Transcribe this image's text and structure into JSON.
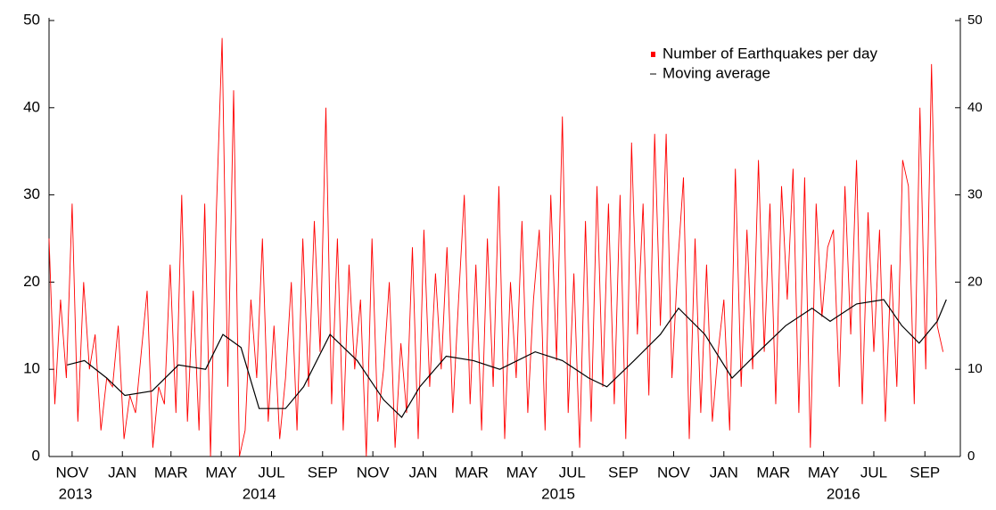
{
  "chart_data": {
    "type": "line",
    "xlim": [
      0,
      1106
    ],
    "ylim": [
      0,
      50
    ],
    "y2lim": [
      0,
      50
    ],
    "yticks": [
      0,
      10,
      20,
      30,
      40,
      50
    ],
    "y2ticks": [
      0,
      10,
      20,
      30,
      40,
      50
    ],
    "xticks": [
      {
        "value": 28,
        "label": "NOV"
      },
      {
        "value": 89,
        "label": "JAN"
      },
      {
        "value": 148,
        "label": "MAR"
      },
      {
        "value": 209,
        "label": "MAY"
      },
      {
        "value": 270,
        "label": "JUL"
      },
      {
        "value": 332,
        "label": "SEP"
      },
      {
        "value": 393,
        "label": "NOV"
      },
      {
        "value": 454,
        "label": "JAN"
      },
      {
        "value": 513,
        "label": "MAR"
      },
      {
        "value": 574,
        "label": "MAY"
      },
      {
        "value": 635,
        "label": "JUL"
      },
      {
        "value": 697,
        "label": "SEP"
      },
      {
        "value": 758,
        "label": "NOV"
      },
      {
        "value": 819,
        "label": "JAN"
      },
      {
        "value": 879,
        "label": "MAR"
      },
      {
        "value": 940,
        "label": "MAY"
      },
      {
        "value": 1001,
        "label": "JUL"
      },
      {
        "value": 1063,
        "label": "SEP"
      }
    ],
    "year_ticks": [
      {
        "value": 32,
        "label": "2013"
      },
      {
        "value": 255,
        "label": "2014"
      },
      {
        "value": 618,
        "label": "2015"
      },
      {
        "value": 964,
        "label": "2016"
      }
    ],
    "legend": "top-right",
    "series": [
      {
        "name": "Number of Earthquakes per day",
        "color": "#ff0000",
        "x": [
          0,
          7,
          14,
          21,
          28,
          35,
          42,
          49,
          56,
          63,
          70,
          77,
          84,
          91,
          98,
          105,
          112,
          119,
          126,
          133,
          140,
          147,
          154,
          161,
          168,
          175,
          182,
          189,
          196,
          203,
          210,
          217,
          224,
          231,
          238,
          245,
          252,
          259,
          266,
          273,
          280,
          287,
          294,
          301,
          308,
          315,
          322,
          329,
          336,
          343,
          350,
          357,
          364,
          371,
          378,
          385,
          392,
          399,
          406,
          413,
          420,
          427,
          434,
          441,
          448,
          455,
          462,
          469,
          476,
          483,
          490,
          497,
          504,
          511,
          518,
          525,
          532,
          539,
          546,
          553,
          560,
          567,
          574,
          581,
          588,
          595,
          602,
          609,
          616,
          623,
          630,
          637,
          644,
          651,
          658,
          665,
          672,
          679,
          686,
          693,
          700,
          707,
          714,
          721,
          728,
          735,
          742,
          749,
          756,
          763,
          770,
          777,
          784,
          791,
          798,
          805,
          812,
          819,
          826,
          833,
          840,
          847,
          854,
          861,
          868,
          875,
          882,
          889,
          896,
          903,
          910,
          917,
          924,
          931,
          938,
          945,
          952,
          959,
          966,
          973,
          980,
          987,
          994,
          1001,
          1008,
          1015,
          1022,
          1029,
          1036,
          1043,
          1050,
          1057,
          1064,
          1071,
          1078,
          1085
        ],
        "values": [
          25,
          6,
          18,
          9,
          29,
          4,
          20,
          10,
          14,
          3,
          9,
          8,
          15,
          2,
          7,
          5,
          12,
          19,
          1,
          8,
          6,
          22,
          5,
          30,
          4,
          19,
          3,
          29,
          0,
          28,
          48,
          8,
          42,
          0,
          3,
          18,
          9,
          25,
          4,
          15,
          2,
          9,
          20,
          3,
          25,
          8,
          27,
          12,
          40,
          6,
          25,
          3,
          22,
          10,
          18,
          0,
          25,
          4,
          10,
          20,
          1,
          13,
          5,
          24,
          2,
          26,
          8,
          21,
          10,
          24,
          5,
          18,
          30,
          6,
          22,
          3,
          25,
          8,
          31,
          2,
          20,
          9,
          27,
          5,
          18,
          26,
          3,
          30,
          11,
          39,
          5,
          21,
          1,
          27,
          4,
          31,
          8,
          29,
          6,
          30,
          2,
          36,
          14,
          29,
          7,
          37,
          15,
          37,
          9,
          22,
          32,
          2,
          25,
          5,
          22,
          4,
          12,
          18,
          3,
          33,
          8,
          26,
          10,
          34,
          12,
          29,
          6,
          31,
          18,
          33,
          5,
          32,
          1,
          29,
          16,
          24,
          26,
          8,
          31,
          14,
          34,
          6,
          28,
          12,
          26,
          4,
          22,
          8,
          34,
          31,
          6,
          40,
          10,
          45,
          15,
          12
        ]
      },
      {
        "name": "Moving average",
        "color": "#000000",
        "x": [
          22,
          43,
          70,
          92,
          125,
          157,
          190,
          211,
          233,
          255,
          287,
          309,
          341,
          374,
          406,
          428,
          450,
          482,
          515,
          547,
          590,
          623,
          655,
          677,
          710,
          742,
          764,
          796,
          829,
          861,
          894,
          926,
          948,
          980,
          1013,
          1035,
          1056,
          1078,
          1089
        ],
        "values": [
          10.5,
          11,
          9,
          7,
          7.5,
          10.5,
          10,
          14,
          12.5,
          5.5,
          5.5,
          8,
          14,
          11,
          6.5,
          4.5,
          8,
          11.5,
          11,
          10,
          12,
          11,
          9,
          8,
          11,
          14,
          17,
          14,
          9,
          12,
          15,
          17,
          15.5,
          17.5,
          18,
          15,
          13,
          15.5,
          18
        ]
      }
    ]
  }
}
